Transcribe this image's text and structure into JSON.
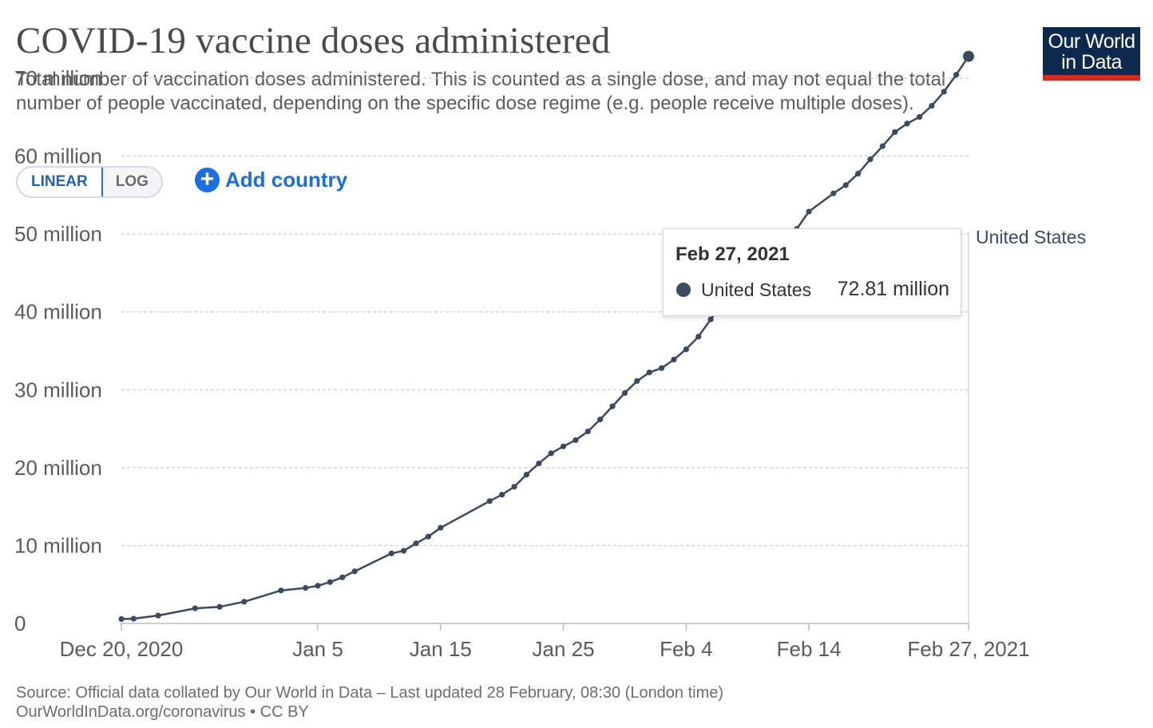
{
  "header": {
    "title": "COVID-19 vaccine doses administered",
    "subtitle": "Total number of vaccination doses administered. This is counted as a single dose, and may not equal the total number of people vaccinated, depending on the specific dose regime (e.g. people receive multiple doses).",
    "logo_line1": "Our World",
    "logo_line2": "in Data"
  },
  "controls": {
    "linear_label": "LINEAR",
    "log_label": "LOG",
    "active_scale": "LINEAR",
    "add_country_label": "Add country"
  },
  "tooltip": {
    "date": "Feb 27, 2021",
    "series": "United States",
    "value": "72.81 million"
  },
  "footer": {
    "source": "Source: Official data collated by Our World in Data – Last updated 28 February, 08:30 (London time)",
    "url_license": "OurWorldInData.org/coronavirus • CC BY"
  },
  "colors": {
    "series": "#3b4a5f",
    "logo_bg": "#0d2a4e",
    "logo_accent": "#d42b21",
    "link": "#1a6fe0"
  },
  "chart_data": {
    "type": "line",
    "title": "COVID-19 vaccine doses administered",
    "xlabel": "",
    "ylabel": "",
    "x_range": [
      "2020-12-20",
      "2021-02-27"
    ],
    "ylim": [
      0,
      70000000
    ],
    "y_ticks": [
      0,
      10000000,
      20000000,
      30000000,
      40000000,
      50000000,
      60000000,
      70000000
    ],
    "y_tick_labels": [
      "0",
      "10 million",
      "20 million",
      "30 million",
      "40 million",
      "50 million",
      "60 million",
      "70 million"
    ],
    "x_ticks": [
      "2020-12-20",
      "2021-01-05",
      "2021-01-15",
      "2021-01-25",
      "2021-02-04",
      "2021-02-14",
      "2021-02-27"
    ],
    "x_tick_labels": [
      "Dec 20, 2020",
      "Jan 5",
      "Jan 15",
      "Jan 25",
      "Feb 4",
      "Feb 14",
      "Feb 27, 2021"
    ],
    "grid": "horizontal dashed",
    "series": [
      {
        "name": "United States",
        "points": [
          {
            "date": "2020-12-20",
            "value": 560000
          },
          {
            "date": "2020-12-21",
            "value": 610000
          },
          {
            "date": "2020-12-23",
            "value": 1010000
          },
          {
            "date": "2020-12-26",
            "value": 1940000
          },
          {
            "date": "2020-12-28",
            "value": 2130000
          },
          {
            "date": "2020-12-30",
            "value": 2790000
          },
          {
            "date": "2021-01-02",
            "value": 4230000
          },
          {
            "date": "2021-01-04",
            "value": 4560000
          },
          {
            "date": "2021-01-05",
            "value": 4840000
          },
          {
            "date": "2021-01-06",
            "value": 5310000
          },
          {
            "date": "2021-01-07",
            "value": 5920000
          },
          {
            "date": "2021-01-08",
            "value": 6690000
          },
          {
            "date": "2021-01-11",
            "value": 8990000
          },
          {
            "date": "2021-01-12",
            "value": 9330000
          },
          {
            "date": "2021-01-13",
            "value": 10280000
          },
          {
            "date": "2021-01-14",
            "value": 11150000
          },
          {
            "date": "2021-01-15",
            "value": 12280000
          },
          {
            "date": "2021-01-19",
            "value": 15710000
          },
          {
            "date": "2021-01-20",
            "value": 16530000
          },
          {
            "date": "2021-01-21",
            "value": 17550000
          },
          {
            "date": "2021-01-22",
            "value": 19110000
          },
          {
            "date": "2021-01-23",
            "value": 20540000
          },
          {
            "date": "2021-01-24",
            "value": 21850000
          },
          {
            "date": "2021-01-25",
            "value": 22730000
          },
          {
            "date": "2021-01-26",
            "value": 23540000
          },
          {
            "date": "2021-01-27",
            "value": 24650000
          },
          {
            "date": "2021-01-28",
            "value": 26190000
          },
          {
            "date": "2021-01-29",
            "value": 27880000
          },
          {
            "date": "2021-01-30",
            "value": 29580000
          },
          {
            "date": "2021-01-31",
            "value": 31120000
          },
          {
            "date": "2021-02-01",
            "value": 32220000
          },
          {
            "date": "2021-02-02",
            "value": 32780000
          },
          {
            "date": "2021-02-03",
            "value": 33880000
          },
          {
            "date": "2021-02-04",
            "value": 35200000
          },
          {
            "date": "2021-02-05",
            "value": 36820000
          },
          {
            "date": "2021-02-06",
            "value": 39040000
          },
          {
            "date": "2021-02-07",
            "value": 41210000
          },
          {
            "date": "2021-02-08",
            "value": 42420000
          },
          {
            "date": "2021-02-09",
            "value": 43210000
          },
          {
            "date": "2021-02-10",
            "value": 44770000
          },
          {
            "date": "2021-02-11",
            "value": 46390000
          },
          {
            "date": "2021-02-12",
            "value": 48410000
          },
          {
            "date": "2021-02-13",
            "value": 50640000
          },
          {
            "date": "2021-02-14",
            "value": 52880000
          },
          {
            "date": "2021-02-16",
            "value": 55220000
          },
          {
            "date": "2021-02-17",
            "value": 56280000
          },
          {
            "date": "2021-02-18",
            "value": 57740000
          },
          {
            "date": "2021-02-19",
            "value": 59590000
          },
          {
            "date": "2021-02-20",
            "value": 61280000
          },
          {
            "date": "2021-02-21",
            "value": 63090000
          },
          {
            "date": "2021-02-22",
            "value": 64180000
          },
          {
            "date": "2021-02-23",
            "value": 65030000
          },
          {
            "date": "2021-02-24",
            "value": 66460000
          },
          {
            "date": "2021-02-25",
            "value": 68270000
          },
          {
            "date": "2021-02-26",
            "value": 70450000
          },
          {
            "date": "2021-02-27",
            "value": 72810000
          }
        ]
      }
    ]
  }
}
